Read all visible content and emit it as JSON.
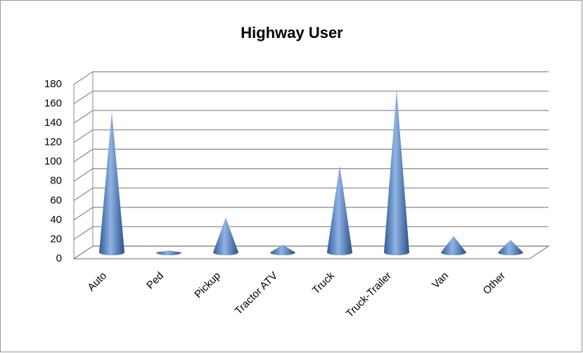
{
  "chart_data": {
    "type": "cone",
    "title": "Highway User",
    "categories": [
      "Auto",
      "Ped",
      "Pickup",
      "Tractor ATV",
      "Truck",
      "Truck-Trailer",
      "Van",
      "Other"
    ],
    "values": [
      145,
      2,
      36,
      8,
      90,
      168,
      17,
      13
    ],
    "color": "#4f81bd",
    "ylim": [
      0,
      180
    ],
    "yticks": [
      0,
      20,
      40,
      60,
      80,
      100,
      120,
      140,
      160,
      180
    ],
    "grid": true
  }
}
